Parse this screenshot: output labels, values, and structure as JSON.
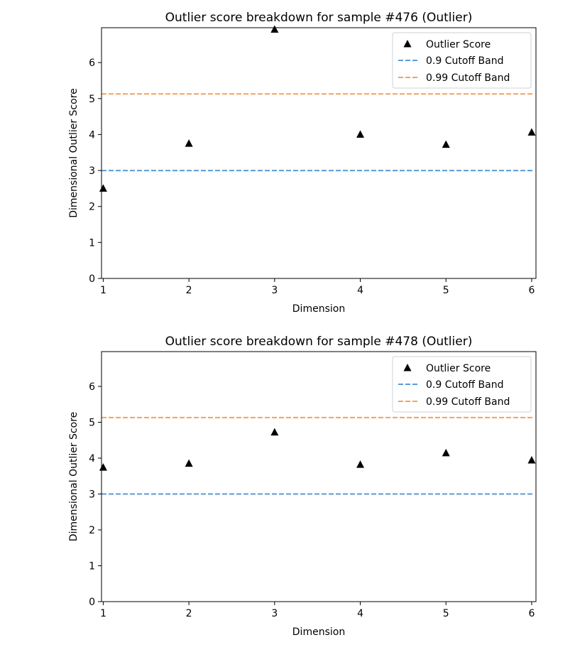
{
  "chart_data": [
    {
      "type": "scatter",
      "title": "Outlier score breakdown for sample #476 (Outlier)",
      "xlabel": "Dimension",
      "ylabel": "Dimensional Outlier Score",
      "x": [
        1,
        2,
        3,
        4,
        5,
        6
      ],
      "xticks": [
        "1",
        "2",
        "3",
        "4",
        "5",
        "6"
      ],
      "yticks": [
        "0",
        "1",
        "2",
        "3",
        "4",
        "5",
        "6"
      ],
      "xlim": [
        0.98,
        6.05
      ],
      "ylim": [
        0,
        6.97
      ],
      "series": [
        {
          "name": "Outlier Score",
          "marker": "triangle",
          "color": "#000000",
          "values": [
            2.5,
            3.75,
            6.92,
            4.0,
            3.72,
            4.06
          ]
        }
      ],
      "cutoffs": [
        {
          "name": "0.9 Cutoff Band",
          "value": 3.0,
          "color": "#5b9bd5"
        },
        {
          "name": "0.99 Cutoff Band",
          "value": 5.13,
          "color": "#f4a259"
        }
      ],
      "legend_position": "top-right"
    },
    {
      "type": "scatter",
      "title": "Outlier score breakdown for sample #478 (Outlier)",
      "xlabel": "Dimension",
      "ylabel": "Dimensional Outlier Score",
      "x": [
        1,
        2,
        3,
        4,
        5,
        6
      ],
      "xticks": [
        "1",
        "2",
        "3",
        "4",
        "5",
        "6"
      ],
      "yticks": [
        "0",
        "1",
        "2",
        "3",
        "4",
        "5",
        "6"
      ],
      "xlim": [
        0.98,
        6.05
      ],
      "ylim": [
        0,
        6.97
      ],
      "series": [
        {
          "name": "Outlier Score",
          "marker": "triangle",
          "color": "#000000",
          "values": [
            3.74,
            3.85,
            4.72,
            3.82,
            4.14,
            3.94
          ]
        }
      ],
      "cutoffs": [
        {
          "name": "0.9 Cutoff Band",
          "value": 3.0,
          "color": "#5b9bd5"
        },
        {
          "name": "0.99 Cutoff Band",
          "value": 5.13,
          "color": "#f4a259"
        }
      ],
      "legend_position": "top-right"
    }
  ]
}
